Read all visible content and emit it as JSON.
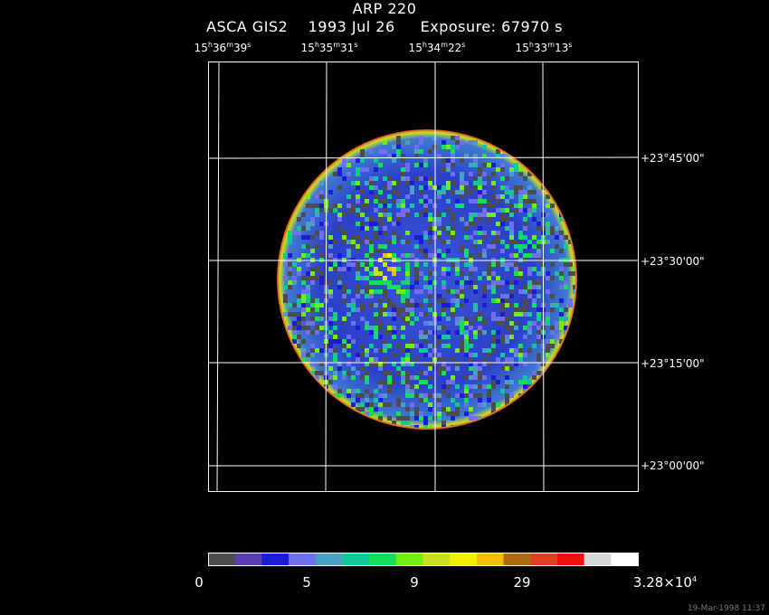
{
  "header": {
    "object_name": "ARP 220",
    "instrument": "ASCA GIS2",
    "date": "1993 Jul 26",
    "exposure": "Exposure: 67970 s"
  },
  "axes": {
    "ra_labels": [
      {
        "h": "15",
        "m": "36",
        "s": "39"
      },
      {
        "h": "15",
        "m": "35",
        "s": "31"
      },
      {
        "h": "15",
        "m": "34",
        "s": "22"
      },
      {
        "h": "15",
        "m": "33",
        "s": "13"
      }
    ],
    "dec_labels": [
      "+23°45'00\"",
      "+23°30'00\"",
      "+23°15'00\"",
      "+23°00'00\""
    ]
  },
  "colorbar": {
    "colors": [
      "#4d4d4d",
      "#5a3fb4",
      "#1c1cd6",
      "#6f6ff0",
      "#4aa0c4",
      "#10c89a",
      "#12e05a",
      "#70ee10",
      "#c8e020",
      "#f0f000",
      "#f0c000",
      "#b06a10",
      "#e04020",
      "#f01010",
      "#d8d8d8",
      "#ffffff"
    ],
    "labels": [
      "0",
      "5",
      "9",
      "29",
      "3.28×10"
    ],
    "last_exponent": "4"
  },
  "footer": {
    "timestamp": "19-Mar-1998 11:37"
  }
}
